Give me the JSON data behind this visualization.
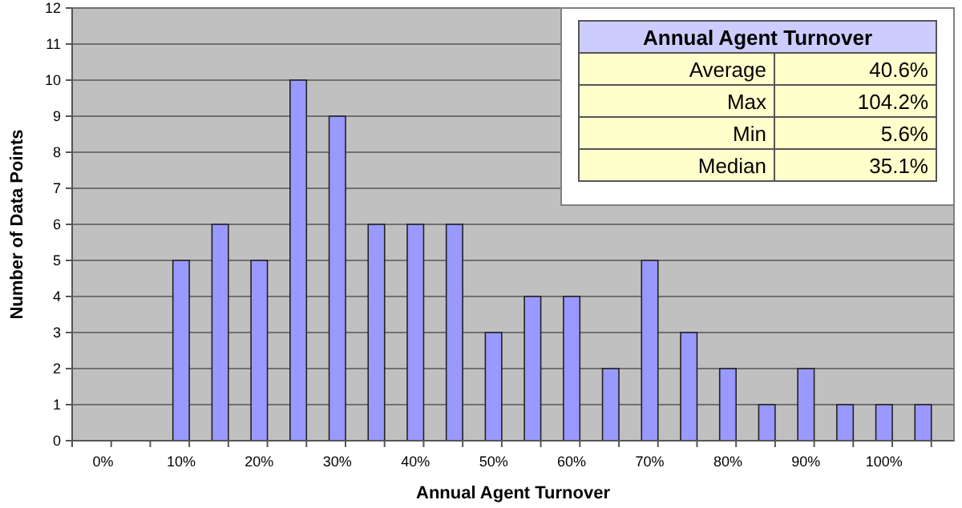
{
  "chart_data": {
    "type": "bar",
    "xlabel": "Annual Agent Turnover",
    "ylabel": "Number of Data Points",
    "categories": [
      "0%",
      null,
      "10%",
      null,
      "20%",
      null,
      "30%",
      null,
      "40%",
      null,
      "50%",
      null,
      "60%",
      null,
      "70%",
      null,
      "80%",
      null,
      "90%",
      null,
      "100%",
      null
    ],
    "values": [
      0,
      0,
      5,
      6,
      5,
      10,
      9,
      6,
      6,
      6,
      3,
      4,
      4,
      2,
      5,
      3,
      2,
      1,
      2,
      1,
      1,
      1
    ],
    "color": "#9999ff",
    "ylim": [
      0,
      12
    ],
    "yticks": [
      0,
      1,
      2,
      3,
      4,
      5,
      6,
      7,
      8,
      9,
      10,
      11,
      12
    ],
    "grid": "y",
    "annotations": [
      "Annual Agent Turnover",
      "Average",
      "40.6%",
      "Max",
      "104.2%",
      "Min",
      "5.6%",
      "Median",
      "35.1%"
    ]
  }
}
